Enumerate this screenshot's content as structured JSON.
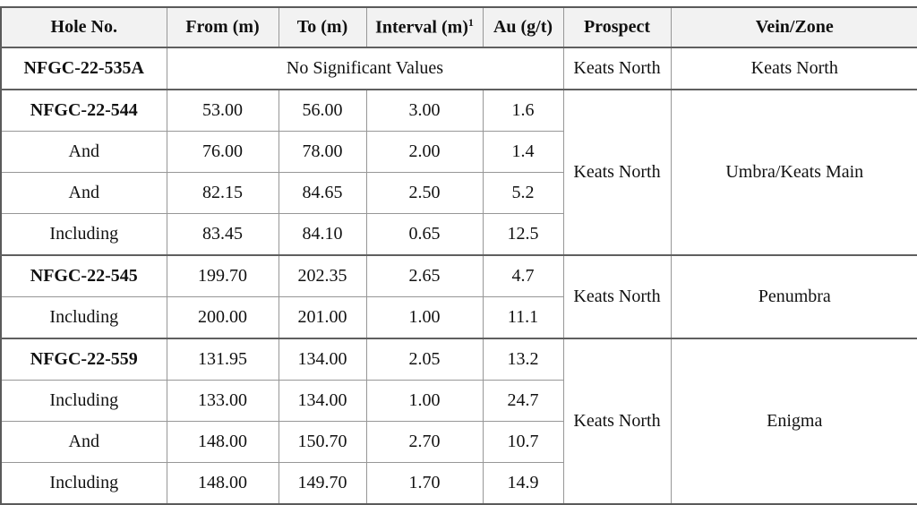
{
  "colors": {
    "header_background": "#f2f2f2",
    "border_dark": "#5f5f5f",
    "border_light": "#979797",
    "text": "#111111"
  },
  "table": {
    "headers": [
      "Hole No.",
      "From (m)",
      "To (m)",
      "Interval (m)",
      "Au (g/t)",
      "Prospect",
      "Vein/Zone"
    ],
    "interval_footnote": "1",
    "rows": [
      {
        "hole": "NFGC-22-535A",
        "note": "No Significant Values",
        "prospect": "Keats North",
        "vein": "Keats North"
      },
      {
        "hole": "NFGC-22-544",
        "from": "53.00",
        "to": "56.00",
        "interval": "3.00",
        "au": "1.6",
        "prospect": "Keats North",
        "vein": "Umbra/Keats Main"
      },
      {
        "hole": "And",
        "from": "76.00",
        "to": "78.00",
        "interval": "2.00",
        "au": "1.4"
      },
      {
        "hole": "And",
        "from": "82.15",
        "to": "84.65",
        "interval": "2.50",
        "au": "5.2"
      },
      {
        "hole": "Including",
        "from": "83.45",
        "to": "84.10",
        "interval": "0.65",
        "au": "12.5"
      },
      {
        "hole": "NFGC-22-545",
        "from": "199.70",
        "to": "202.35",
        "interval": "2.65",
        "au": "4.7",
        "prospect": "Keats North",
        "vein": "Penumbra"
      },
      {
        "hole": "Including",
        "from": "200.00",
        "to": "201.00",
        "interval": "1.00",
        "au": "11.1"
      },
      {
        "hole": "NFGC-22-559",
        "from": "131.95",
        "to": "134.00",
        "interval": "2.05",
        "au": "13.2",
        "prospect": "Keats North",
        "vein": "Enigma"
      },
      {
        "hole": "Including",
        "from": "133.00",
        "to": "134.00",
        "interval": "1.00",
        "au": "24.7"
      },
      {
        "hole": "And",
        "from": "148.00",
        "to": "150.70",
        "interval": "2.70",
        "au": "10.7"
      },
      {
        "hole": "Including",
        "from": "148.00",
        "to": "149.70",
        "interval": "1.70",
        "au": "14.9"
      }
    ]
  }
}
